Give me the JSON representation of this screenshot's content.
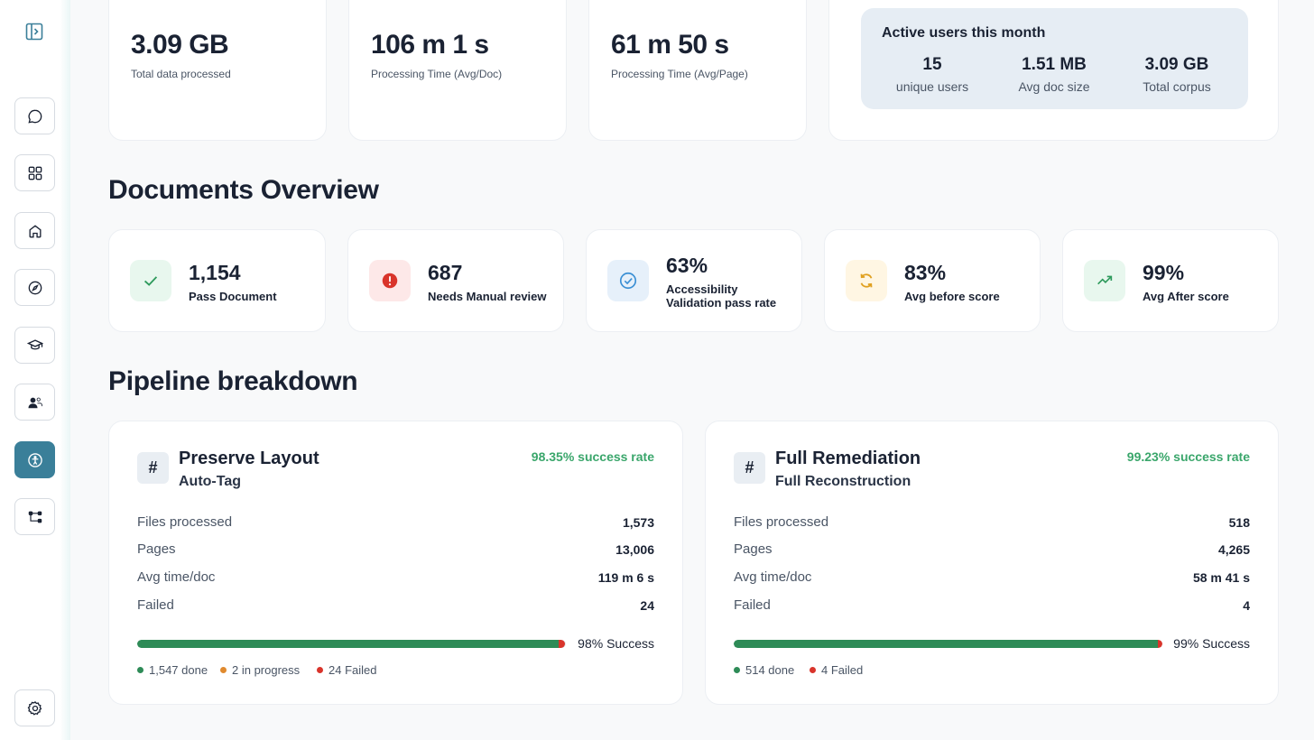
{
  "colors": {
    "accent": "#3a7f99",
    "success": "#2e8b57",
    "success_text": "#3aa66b",
    "danger": "#d9342b",
    "warning": "#e08a2e"
  },
  "sidebar": {
    "items": [
      {
        "name": "chat",
        "icon": "chat-bubble-icon"
      },
      {
        "name": "apps",
        "icon": "grid-icon"
      },
      {
        "name": "home",
        "icon": "home-icon"
      },
      {
        "name": "explore",
        "icon": "compass-icon"
      },
      {
        "name": "learn",
        "icon": "graduation-cap-icon"
      },
      {
        "name": "users",
        "icon": "users-icon"
      },
      {
        "name": "accessibility",
        "icon": "accessibility-icon",
        "active": true
      },
      {
        "name": "workflow",
        "icon": "workflow-icon"
      }
    ],
    "settings_icon": "gear-icon"
  },
  "top_stats": [
    {
      "value": "3.09 GB",
      "label": "Total data processed"
    },
    {
      "value": "106 m 1 s",
      "label": "Processing Time (Avg/Doc)"
    },
    {
      "value": "61 m 50 s",
      "label": "Processing Time (Avg/Page)"
    }
  ],
  "active_users": {
    "title": "Active users this month",
    "items": [
      {
        "value": "15",
        "label": "unique users"
      },
      {
        "value": "1.51 MB",
        "label": "Avg doc size"
      },
      {
        "value": "3.09 GB",
        "label": "Total corpus"
      }
    ]
  },
  "documents_overview": {
    "title": "Documents Overview",
    "cards": [
      {
        "value": "1,154",
        "label": "Pass Document",
        "icon": "check-icon"
      },
      {
        "value": "687",
        "label": "Needs Manual review",
        "icon": "alert-icon"
      },
      {
        "value": "63%",
        "label_line1": "Accessibility",
        "label_line2": "Validation pass rate",
        "icon": "check-circle-icon"
      },
      {
        "value": "83%",
        "label": "Avg before score",
        "icon": "refresh-icon"
      },
      {
        "value": "99%",
        "label": "Avg After score",
        "icon": "trending-up-icon"
      }
    ]
  },
  "pipeline": {
    "title": "Pipeline breakdown",
    "cards": [
      {
        "title": "Preserve Layout",
        "subtitle": "Auto-Tag",
        "success_rate": "98.35% success rate",
        "rows": [
          {
            "label": "Files processed",
            "value": "1,573"
          },
          {
            "label": "Pages",
            "value": "13,006"
          },
          {
            "label": "Avg time/doc",
            "value": "119 m 6 s"
          },
          {
            "label": "Failed",
            "value": "24"
          }
        ],
        "progress_done_fraction": 0.9834,
        "progress_fail_fraction": 0.0153,
        "progress_label": "98% Success",
        "legend": [
          {
            "label": "1,547 done",
            "color": "#2e8b57"
          },
          {
            "label": "2 in progress",
            "color": "#e08a2e"
          },
          {
            "label": "24 Failed",
            "color": "#d9342b"
          }
        ]
      },
      {
        "title": "Full Remediation",
        "subtitle": "Full Reconstruction",
        "success_rate": "99.23% success rate",
        "rows": [
          {
            "label": "Files processed",
            "value": "518"
          },
          {
            "label": "Pages",
            "value": "4,265"
          },
          {
            "label": "Avg time/doc",
            "value": "58 m 41 s"
          },
          {
            "label": "Failed",
            "value": "4"
          }
        ],
        "progress_done_fraction": 0.9923,
        "progress_fail_fraction": 0.0077,
        "progress_label": "99% Success",
        "legend": [
          {
            "label": "514 done",
            "color": "#2e8b57"
          },
          {
            "label": "4 Failed",
            "color": "#d9342b"
          }
        ]
      }
    ]
  }
}
